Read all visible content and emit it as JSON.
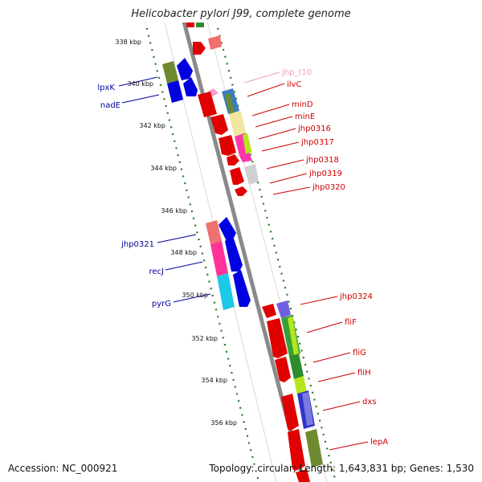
{
  "title": "Helicobacter pylori J99, complete genome",
  "accession": "Accession: NC_000921",
  "topology": "Topology: circular; Length: 1,643,831 bp; Genes: 1,530",
  "colors": {
    "backbone": "#8a8a8a",
    "tick": "#1f7a1f",
    "forward_label": "#cc0000",
    "reverse_label": "#00009c",
    "trna_label": "#f59ac0"
  },
  "kbp_ticks": [
    "338 kbp",
    "340 kbp",
    "342 kbp",
    "344 kbp",
    "346 kbp",
    "348 kbp",
    "350 kbp",
    "352 kbp",
    "354 kbp",
    "356 kbp"
  ],
  "reverse_genes": [
    {
      "name": "lpxK",
      "color": "#00009c"
    },
    {
      "name": "nadE",
      "color": "#00009c"
    },
    {
      "name": "jhp0321",
      "color": "#00009c"
    },
    {
      "name": "recJ",
      "color": "#00009c"
    },
    {
      "name": "pyrG",
      "color": "#00009c"
    }
  ],
  "forward_genes": [
    {
      "name": "jhp_t10",
      "color": "#f59ac0"
    },
    {
      "name": "ilvC",
      "color": "#cc0000"
    },
    {
      "name": "minD",
      "color": "#cc0000"
    },
    {
      "name": "minE",
      "color": "#cc0000"
    },
    {
      "name": "jhp0316",
      "color": "#cc0000"
    },
    {
      "name": "jhp0317",
      "color": "#cc0000"
    },
    {
      "name": "jhp0318",
      "color": "#cc0000"
    },
    {
      "name": "jhp0319",
      "color": "#cc0000"
    },
    {
      "name": "jhp0320",
      "color": "#cc0000"
    },
    {
      "name": "jhp0324",
      "color": "#cc0000"
    },
    {
      "name": "fliF",
      "color": "#cc0000"
    },
    {
      "name": "fliG",
      "color": "#cc0000"
    },
    {
      "name": "fliH",
      "color": "#cc0000"
    },
    {
      "name": "dxs",
      "color": "#cc0000"
    },
    {
      "name": "lepA",
      "color": "#cc0000"
    }
  ]
}
